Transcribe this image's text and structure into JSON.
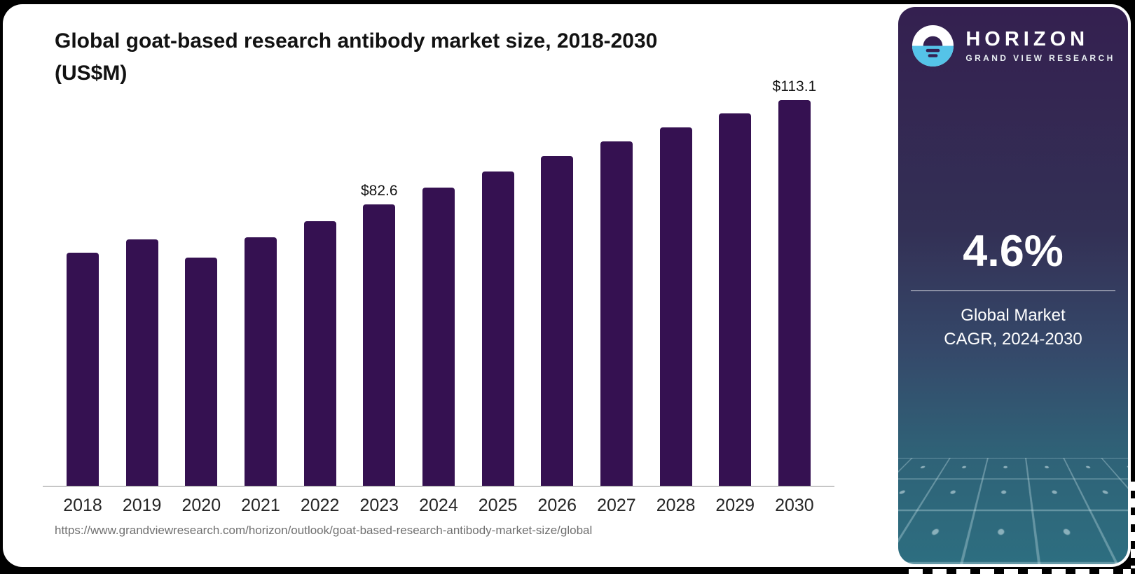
{
  "page": {
    "title_line1": "Global goat-based research antibody market size, 2018-2030",
    "title_line2": "(US$M)",
    "source_url": "https://www.grandviewresearch.com/horizon/outlook/goat-based-research-antibody-market-size/global"
  },
  "sidebar": {
    "brand_name": "HORIZON",
    "brand_subtitle": "GRAND VIEW RESEARCH",
    "cagr_value": "4.6%",
    "cagr_label_line1": "Global Market",
    "cagr_label_line2": "CAGR, 2024-2030",
    "colors": {
      "gradient_top": "#342050",
      "gradient_bottom": "#2d6e80",
      "logo_blue": "#55c3e8",
      "text": "#ffffff"
    }
  },
  "chart_data": {
    "type": "bar",
    "title": "Global goat-based research antibody market size, 2018-2030 (US$M)",
    "xlabel": "",
    "ylabel": "US$M",
    "categories": [
      "2018",
      "2019",
      "2020",
      "2021",
      "2022",
      "2023",
      "2024",
      "2025",
      "2026",
      "2027",
      "2028",
      "2029",
      "2030"
    ],
    "values": [
      68.4,
      72.2,
      67.0,
      72.8,
      77.6,
      82.6,
      87.4,
      92.1,
      96.6,
      101.0,
      105.0,
      109.2,
      113.1
    ],
    "labeled_points": [
      {
        "category": "2023",
        "label": "$82.6"
      },
      {
        "category": "2030",
        "label": "$113.1"
      }
    ],
    "bar_color": "#351151",
    "ylim": [
      0,
      120
    ],
    "grid": false,
    "legend": false
  }
}
